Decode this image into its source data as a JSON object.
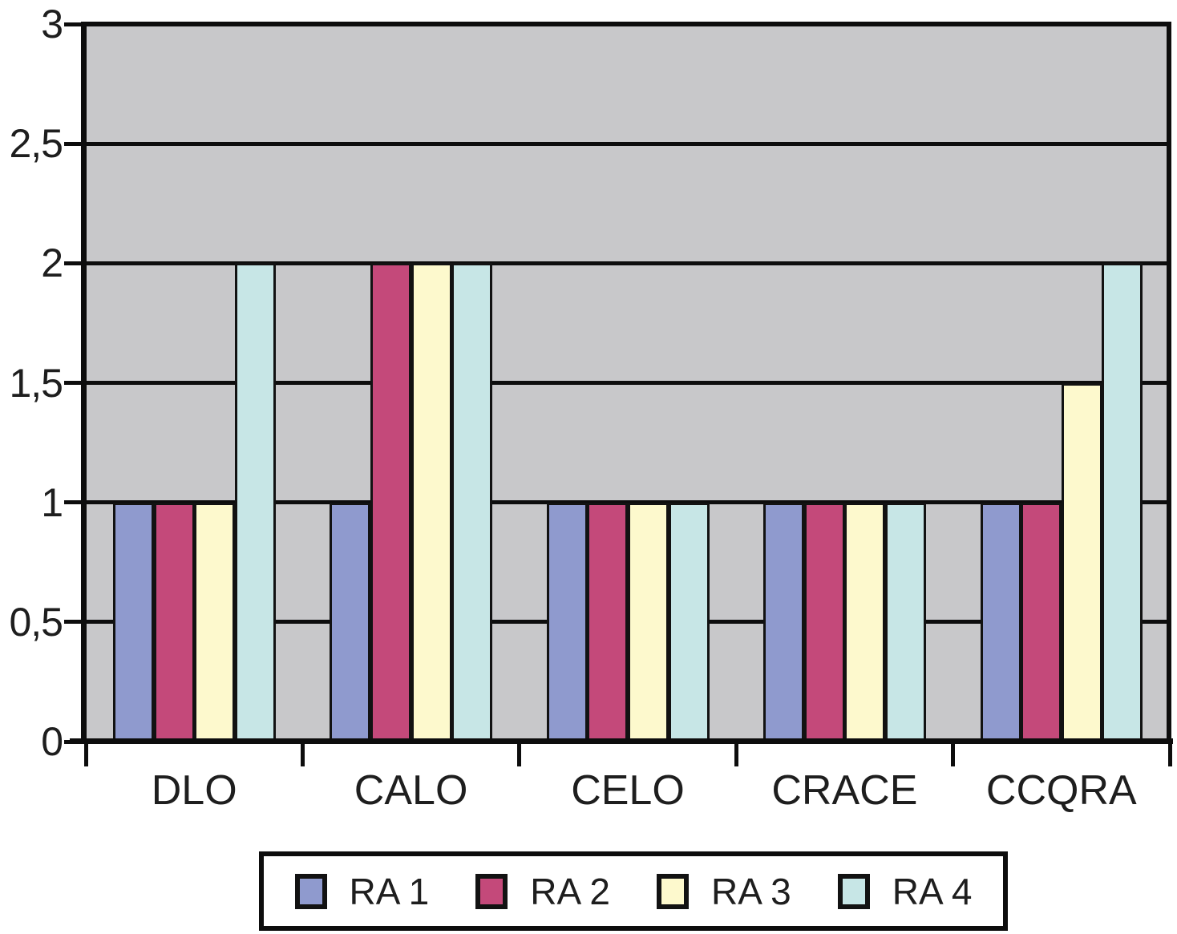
{
  "chart_data": {
    "type": "bar",
    "title": "",
    "xlabel": "",
    "ylabel": "",
    "categories": [
      "DLO",
      "CALO",
      "CELO",
      "CRACE",
      "CCQRA"
    ],
    "series": [
      {
        "name": "RA 1",
        "color": "#8f9ace",
        "values": [
          1,
          1,
          1,
          1,
          1
        ]
      },
      {
        "name": "RA 2",
        "color": "#c4497a",
        "values": [
          1,
          2,
          1,
          1,
          1
        ]
      },
      {
        "name": "RA 3",
        "color": "#fdf9cd",
        "values": [
          1,
          2,
          1,
          1,
          1.5
        ]
      },
      {
        "name": "RA 4",
        "color": "#c7e6e6",
        "values": [
          2,
          2,
          1,
          1,
          2
        ]
      }
    ],
    "ylim": [
      0,
      3
    ],
    "y_ticks": {
      "values": [
        0,
        0.5,
        1,
        1.5,
        2,
        2.5,
        3
      ],
      "labels": [
        "0",
        "0,5",
        "1",
        "1,5",
        "2",
        "2,5",
        "3"
      ]
    },
    "grid": "horizontal gridlines every 0.5",
    "legend_position": "bottom",
    "plot_background": "#c8c8ca",
    "line_color": "#0d0d0d"
  }
}
